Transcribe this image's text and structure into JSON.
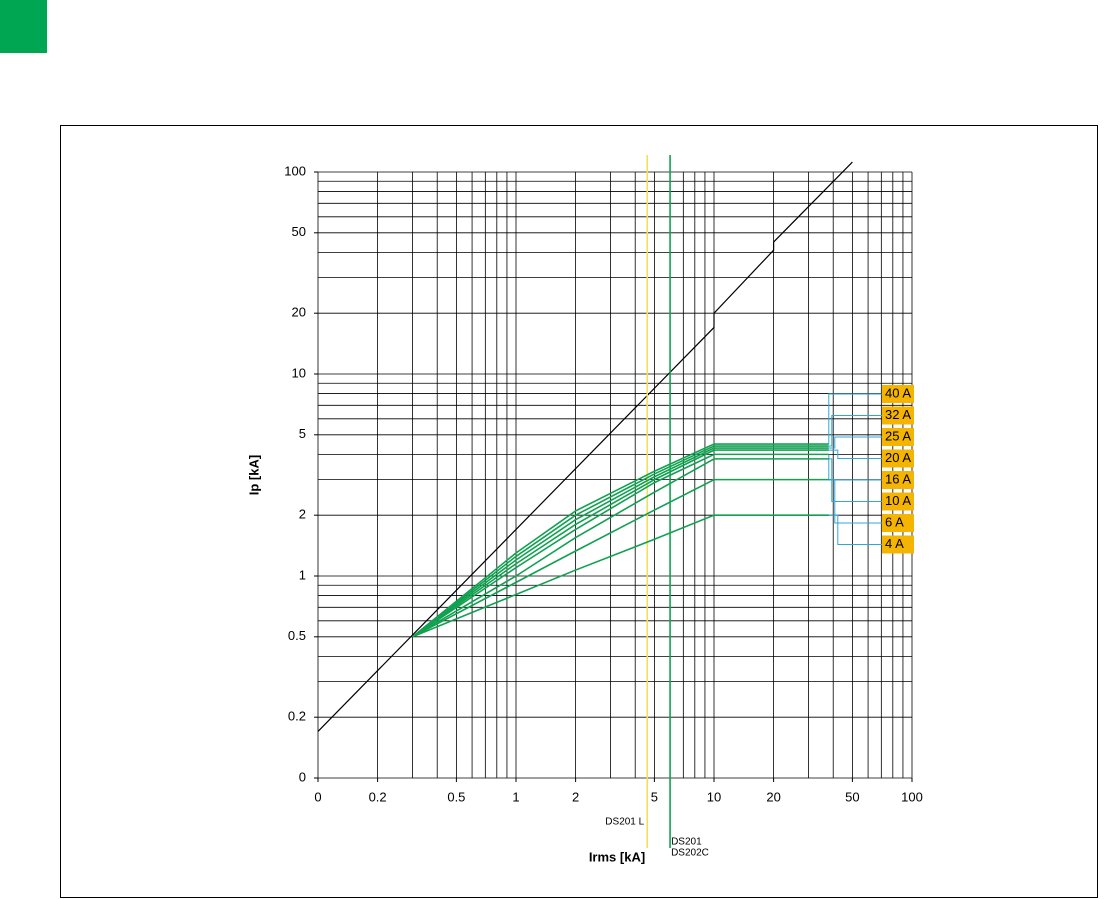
{
  "chart_data": {
    "type": "line",
    "log_x": true,
    "log_y": true,
    "grid": true,
    "xlabel": "Irms [kA]",
    "ylabel": "Ip [kA]",
    "xlim": [
      0.1,
      100
    ],
    "ylim": [
      0.1,
      100
    ],
    "xticks": [
      {
        "value": 0.1,
        "label": "0"
      },
      0.2,
      0.5,
      1,
      2,
      5,
      10,
      20,
      50,
      100
    ],
    "yticks": [
      {
        "value": 0.1,
        "label": "0"
      },
      0.2,
      0.5,
      1,
      2,
      5,
      10,
      20,
      50,
      100
    ],
    "xgrid": [
      0.1,
      0.2,
      0.3,
      0.4,
      0.5,
      0.6,
      0.7,
      0.8,
      0.9,
      1,
      2,
      3,
      4,
      5,
      6,
      7,
      8,
      9,
      10,
      20,
      30,
      40,
      50,
      60,
      70,
      80,
      90,
      100
    ],
    "ygrid": [
      0.1,
      0.2,
      0.3,
      0.4,
      0.5,
      0.6,
      0.7,
      0.8,
      0.9,
      1,
      2,
      3,
      4,
      5,
      6,
      7,
      8,
      9,
      10,
      20,
      30,
      40,
      50,
      60,
      70,
      80,
      90,
      100
    ],
    "reference": {
      "color": "#000000",
      "x": [
        0.1,
        10,
        10,
        20,
        20,
        50
      ],
      "values": [
        0.17,
        17,
        20,
        41,
        45,
        112
      ]
    },
    "label_color": "#f5b400",
    "leader_color": "#2fa8d8",
    "series": [
      {
        "name": "40 A",
        "color": "#12a150",
        "x": [
          0.3,
          1,
          2,
          5,
          10,
          38
        ],
        "values": [
          0.5,
          1.3,
          2.1,
          3.3,
          4.5,
          4.5
        ]
      },
      {
        "name": "32 A",
        "color": "#12a150",
        "x": [
          0.3,
          1,
          2,
          5,
          10,
          38
        ],
        "values": [
          0.5,
          1.25,
          2.0,
          3.2,
          4.4,
          4.4
        ]
      },
      {
        "name": "25 A",
        "color": "#12a150",
        "x": [
          0.3,
          1,
          2,
          5,
          10,
          38
        ],
        "values": [
          0.5,
          1.2,
          1.9,
          3.1,
          4.3,
          4.3
        ]
      },
      {
        "name": "20 A",
        "color": "#12a150",
        "x": [
          0.3,
          1,
          2,
          5,
          10,
          38
        ],
        "values": [
          0.5,
          1.15,
          1.8,
          3.0,
          4.2,
          4.2
        ]
      },
      {
        "name": "16 A",
        "color": "#12a150",
        "x": [
          0.3,
          1,
          2,
          5,
          10,
          38
        ],
        "values": [
          0.5,
          1.1,
          1.7,
          2.9,
          4.0,
          4.0
        ]
      },
      {
        "name": "10 A",
        "color": "#12a150",
        "x": [
          0.3,
          1,
          2,
          5,
          10,
          38
        ],
        "values": [
          0.5,
          1.0,
          1.55,
          2.6,
          3.8,
          3.8
        ]
      },
      {
        "name": "6 A",
        "color": "#12a150",
        "x": [
          0.3,
          1,
          2,
          5,
          10,
          38
        ],
        "values": [
          0.5,
          0.93,
          1.33,
          2.12,
          3,
          3
        ]
      },
      {
        "name": "4 A",
        "color": "#12a150",
        "x": [
          0.3,
          1,
          2,
          5,
          10,
          38
        ],
        "values": [
          0.5,
          0.81,
          1.07,
          1.52,
          2,
          2
        ]
      }
    ],
    "vlines": [
      {
        "x": 4.6,
        "color": "#f2e05a",
        "label": [
          "DS201 L"
        ]
      },
      {
        "x": 6,
        "color": "#12a150",
        "label": [
          "DS201",
          "DS202C"
        ]
      }
    ]
  }
}
